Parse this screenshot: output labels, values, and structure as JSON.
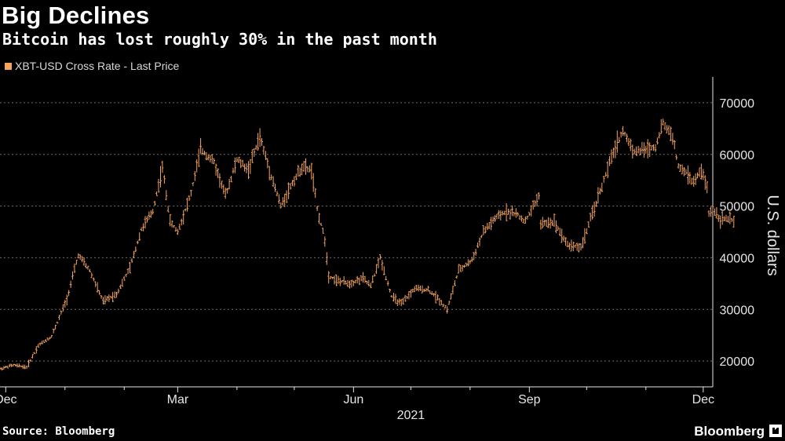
{
  "header": {
    "title": "Big Declines",
    "subtitle": "Bitcoin has lost roughly 30% in the past month"
  },
  "legend": {
    "label": "XBT-USD Cross Rate - Last Price"
  },
  "footer": {
    "source": "Source: Bloomberg",
    "brand": "Bloomberg",
    "brand_icon": "bloomberg-terminal-icon"
  },
  "colors": {
    "background": "#000000",
    "series": "#f5a45d",
    "grid": "#6e6e6e",
    "text": "#e6e6e6"
  },
  "chart_data": {
    "type": "line",
    "style": "ohlc-bars",
    "title": "Big Declines",
    "subtitle": "Bitcoin has lost roughly 30% in the past month",
    "ylabel": "U.S. dollars",
    "xlabel": "2021",
    "ylim": [
      15000,
      75000
    ],
    "yticks": [
      20000,
      30000,
      40000,
      50000,
      60000,
      70000
    ],
    "ytick_labels": [
      "20000",
      "30000",
      "40000",
      "50000",
      "60000",
      "70000"
    ],
    "xlim": [
      "2020-11-28",
      "2021-12-06"
    ],
    "xticks": [
      "2020-12-01",
      "2021-03-01",
      "2021-06-01",
      "2021-09-01",
      "2021-12-01"
    ],
    "xtick_labels": [
      "Dec",
      "Mar",
      "Jun",
      "Sep",
      "Dec"
    ],
    "minor_xticks": [
      "2021-01-01",
      "2021-02-01",
      "2021-04-01",
      "2021-05-01",
      "2021-07-01",
      "2021-08-01",
      "2021-10-01",
      "2021-11-01"
    ],
    "grid": true,
    "legend_position": "top-left",
    "series": [
      {
        "name": "XBT-USD Cross Rate - Last Price",
        "points": [
          [
            "2020-11-28",
            18500
          ],
          [
            "2020-12-05",
            19200
          ],
          [
            "2020-12-12",
            18800
          ],
          [
            "2020-12-18",
            23000
          ],
          [
            "2020-12-25",
            24800
          ],
          [
            "2021-01-02",
            32000
          ],
          [
            "2021-01-08",
            40500
          ],
          [
            "2021-01-14",
            37500
          ],
          [
            "2021-01-21",
            31500
          ],
          [
            "2021-01-28",
            33000
          ],
          [
            "2021-02-04",
            38000
          ],
          [
            "2021-02-10",
            45500
          ],
          [
            "2021-02-16",
            49000
          ],
          [
            "2021-02-21",
            57500
          ],
          [
            "2021-02-25",
            47000
          ],
          [
            "2021-03-01",
            45000
          ],
          [
            "2021-03-08",
            52500
          ],
          [
            "2021-03-13",
            61000
          ],
          [
            "2021-03-20",
            58500
          ],
          [
            "2021-03-26",
            52000
          ],
          [
            "2021-04-01",
            59000
          ],
          [
            "2021-04-07",
            57000
          ],
          [
            "2021-04-13",
            63500
          ],
          [
            "2021-04-18",
            57000
          ],
          [
            "2021-04-24",
            50000
          ],
          [
            "2021-04-30",
            54500
          ],
          [
            "2021-05-05",
            57500
          ],
          [
            "2021-05-10",
            57000
          ],
          [
            "2021-05-13",
            49500
          ],
          [
            "2021-05-17",
            43500
          ],
          [
            "2021-05-19",
            36500
          ],
          [
            "2021-05-24",
            35500
          ],
          [
            "2021-05-30",
            35000
          ],
          [
            "2021-06-06",
            36000
          ],
          [
            "2021-06-10",
            34500
          ],
          [
            "2021-06-15",
            40000
          ],
          [
            "2021-06-21",
            32500
          ],
          [
            "2021-06-26",
            31000
          ],
          [
            "2021-07-03",
            34000
          ],
          [
            "2021-07-10",
            33800
          ],
          [
            "2021-07-16",
            31800
          ],
          [
            "2021-07-20",
            30000
          ],
          [
            "2021-07-26",
            37500
          ],
          [
            "2021-08-02",
            39500
          ],
          [
            "2021-08-08",
            45000
          ],
          [
            "2021-08-14",
            47500
          ],
          [
            "2021-08-20",
            49000
          ],
          [
            "2021-08-25",
            48500
          ],
          [
            "2021-08-30",
            47000
          ],
          [
            "2021-09-06",
            52000
          ],
          [
            "2021-09-07",
            46500
          ],
          [
            "2021-09-14",
            47000
          ],
          [
            "2021-09-21",
            42500
          ],
          [
            "2021-09-28",
            42000
          ],
          [
            "2021-10-04",
            48500
          ],
          [
            "2021-10-10",
            55000
          ],
          [
            "2021-10-16",
            61500
          ],
          [
            "2021-10-20",
            64500
          ],
          [
            "2021-10-26",
            60500
          ],
          [
            "2021-11-01",
            61000
          ],
          [
            "2021-11-06",
            61500
          ],
          [
            "2021-11-10",
            66000
          ],
          [
            "2021-11-15",
            63500
          ],
          [
            "2021-11-18",
            57500
          ],
          [
            "2021-11-22",
            56500
          ],
          [
            "2021-11-26",
            54500
          ],
          [
            "2021-11-30",
            57000
          ],
          [
            "2021-12-03",
            53500
          ],
          [
            "2021-12-04",
            48500
          ],
          [
            "2021-12-06",
            49500
          ],
          [
            "2021-12-10",
            47500
          ],
          [
            "2021-12-14",
            47500
          ],
          [
            "2021-12-17",
            47000
          ]
        ]
      }
    ]
  }
}
